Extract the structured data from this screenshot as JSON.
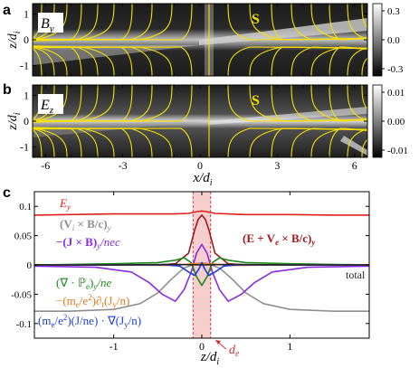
{
  "chart_data": [
    {
      "panel_label": "a",
      "type": "heatmap",
      "field_label": "B",
      "field_subscript": "y",
      "marker": "S",
      "ylabel_main": "z/d",
      "ylabel_sub": "i",
      "yticks": [
        "1",
        "0",
        "-1"
      ],
      "ylim": [
        -1.4,
        1.4
      ],
      "xlim": [
        -6.5,
        6.5
      ],
      "colorbar_ticks": [
        "0.3",
        "0.0",
        "-0.3"
      ],
      "colorbar_range": [
        -0.35,
        0.35
      ]
    },
    {
      "panel_label": "b",
      "type": "heatmap",
      "field_label": "E",
      "field_subscript": "z",
      "marker": "S",
      "ylabel_main": "z/d",
      "ylabel_sub": "i",
      "yticks": [
        "1",
        "0",
        "-1"
      ],
      "ylim": [
        -1.4,
        1.4
      ],
      "xlim": [
        -6.5,
        6.5
      ],
      "xticks": [
        "-6",
        "-3",
        "0",
        "3",
        "6"
      ],
      "xlabel_main": "x/d",
      "xlabel_sub": "i",
      "colorbar_ticks": [
        "0.01",
        "0.00",
        "-0.01"
      ],
      "colorbar_range": [
        -0.012,
        0.012
      ]
    },
    {
      "panel_label": "c",
      "type": "line",
      "xlabel_main": "z/d",
      "xlabel_sub": "i",
      "xticks": [
        "-1",
        "0",
        "1"
      ],
      "xlim": [
        -1.9,
        1.9
      ],
      "ylim": [
        -0.125,
        0.125
      ],
      "yticks": [
        "0.1",
        "0.05",
        "0",
        "-0.05",
        "-0.1"
      ],
      "highlight_band": [
        -0.1,
        0.1
      ],
      "de_label": "d",
      "de_sub": "e",
      "series": [
        {
          "name": "E_y",
          "color": "#e0201b",
          "x": [
            -1.9,
            -1.5,
            -1.0,
            -0.5,
            -0.3,
            -0.15,
            -0.05,
            0,
            0.05,
            0.15,
            0.3,
            0.5,
            1.0,
            1.5,
            1.9
          ],
          "y": [
            0.085,
            0.086,
            0.087,
            0.087,
            0.087,
            0.088,
            0.091,
            0.092,
            0.091,
            0.088,
            0.087,
            0.086,
            0.086,
            0.085,
            0.085
          ]
        },
        {
          "name": "(E+Ve×B/c)_y",
          "color": "#a0191a",
          "x": [
            -1.9,
            -1.0,
            -0.5,
            -0.3,
            -0.15,
            -0.08,
            -0.04,
            0,
            0.04,
            0.08,
            0.15,
            0.3,
            0.5,
            1.0,
            1.9
          ],
          "y": [
            0.0,
            0.0,
            0.0,
            0.002,
            0.02,
            0.06,
            0.078,
            0.085,
            0.078,
            0.06,
            0.02,
            0.002,
            0.0,
            0.0,
            0.0
          ]
        },
        {
          "name": "(Vi×B/c)_y",
          "color": "#8f8f8f",
          "x": [
            -1.9,
            -1.5,
            -1.0,
            -0.7,
            -0.5,
            -0.35,
            -0.2,
            -0.1,
            0,
            0.1,
            0.2,
            0.35,
            0.5,
            0.7,
            1.0,
            1.5,
            1.9
          ],
          "y": [
            -0.079,
            -0.079,
            -0.076,
            -0.066,
            -0.048,
            -0.025,
            -0.005,
            0.0,
            0.002,
            0.0,
            -0.005,
            -0.025,
            -0.048,
            -0.066,
            -0.076,
            -0.079,
            -0.079
          ]
        },
        {
          "name": "-(J×B)_y/nec",
          "color": "#8a2be2",
          "x": [
            -1.9,
            -1.2,
            -0.8,
            -0.6,
            -0.45,
            -0.3,
            -0.2,
            -0.12,
            -0.06,
            0,
            0.06,
            0.12,
            0.2,
            0.3,
            0.45,
            0.6,
            0.8,
            1.2,
            1.9
          ],
          "y": [
            -0.002,
            -0.004,
            -0.012,
            -0.03,
            -0.05,
            -0.062,
            -0.042,
            -0.012,
            0.02,
            0.035,
            0.02,
            -0.012,
            -0.042,
            -0.062,
            -0.05,
            -0.03,
            -0.012,
            -0.004,
            -0.002
          ]
        },
        {
          "name": "(∇·Pe)_y/ne",
          "color": "#1e8a1e",
          "x": [
            -1.9,
            -1.0,
            -0.5,
            -0.3,
            -0.2,
            -0.12,
            -0.06,
            0,
            0.06,
            0.12,
            0.2,
            0.3,
            0.5,
            1.0,
            1.9
          ],
          "y": [
            0.0,
            0.002,
            0.004,
            0.008,
            0.012,
            0.004,
            -0.02,
            -0.035,
            -0.02,
            0.004,
            0.012,
            0.008,
            0.004,
            0.002,
            0.0
          ]
        },
        {
          "name": "-(me/e²)∂t(Jy/n)",
          "color": "#e07a1a",
          "x": [
            -1.9,
            -1.0,
            -0.3,
            -0.1,
            0,
            0.1,
            0.3,
            1.0,
            1.9
          ],
          "y": [
            0.0,
            0.0,
            -0.001,
            0.002,
            0.003,
            0.002,
            -0.001,
            0.0,
            0.0
          ]
        },
        {
          "name": "(me/e²)(J/ne)·∇(Jy/n)",
          "color": "#1a3fe0",
          "x": [
            -1.9,
            -1.0,
            -0.4,
            -0.25,
            -0.15,
            -0.08,
            -0.03,
            0,
            0.03,
            0.08,
            0.15,
            0.25,
            0.4,
            1.0,
            1.9
          ],
          "y": [
            0.0,
            0.0,
            0.0,
            -0.002,
            -0.012,
            -0.018,
            -0.006,
            0.004,
            -0.006,
            -0.018,
            -0.012,
            -0.002,
            0.0,
            0.0,
            0.0
          ]
        },
        {
          "name": "total",
          "color": "#222222",
          "x": [
            -1.9,
            -1.0,
            -0.3,
            0,
            0.3,
            1.0,
            1.9
          ],
          "y": [
            0.0,
            0.0,
            0.001,
            0.0,
            0.001,
            0.0,
            0.0
          ]
        }
      ],
      "legend": {
        "E_y": "E",
        "E_y_sub": "y",
        "vi": "(V",
        "vi_sub": "i",
        "vi_rest": " × B/c)",
        "vi_sub2": "y",
        "jxb": "−(J × B)",
        "jxb_sub": "y",
        "jxb_rest": "/nec",
        "divp": "(∇ · ℙ",
        "divp_sub": "e",
        "divp_rest": ")",
        "divp_sub2": "y",
        "divp_rest2": "/ne",
        "dt": "−(m",
        "dt_sub": "e",
        "dt_rest": "/e",
        "dt_sup": "2",
        "dt_rest2": ")∂",
        "dt_sub2": "t",
        "dt_rest3": "(J",
        "dt_sub3": "y",
        "dt_rest4": "/n)",
        "conv": "(m",
        "conv_sub": "e",
        "conv_rest": "/e",
        "conv_sup": "2",
        "conv_rest2": ")(J/ne) · ∇(J",
        "conv_sub2": "y",
        "conv_rest3": "/n)",
        "ohm": "(E + V",
        "ohm_sub": "e",
        "ohm_rest": " × B/c)",
        "ohm_sub2": "y",
        "total": "total"
      }
    }
  ]
}
